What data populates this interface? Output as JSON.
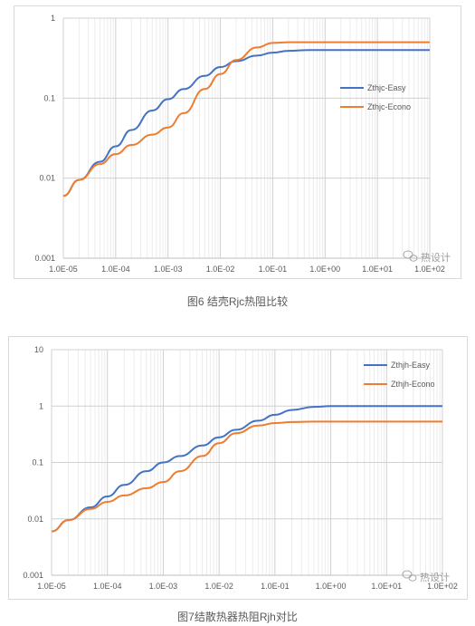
{
  "chart_data": [
    {
      "type": "line",
      "title": "",
      "xlabel": "",
      "ylabel": "",
      "x_scale": "log",
      "y_scale": "log",
      "xlim": [
        1e-05,
        100
      ],
      "ylim": [
        0.001,
        1
      ],
      "grid": true,
      "legend_position": "right",
      "x_tick_labels": [
        "1.0E-05",
        "1.0E-04",
        "1.0E-03",
        "1.0E-02",
        "1.0E-01",
        "1.0E+00",
        "1.0E+01",
        "1.0E+02"
      ],
      "y_tick_labels": [
        "1",
        "0.1",
        "0.01",
        "0.001"
      ],
      "series": [
        {
          "name": "Zthjc-Easy",
          "color": "#4472C4",
          "x": [
            1e-05,
            2e-05,
            5e-05,
            0.0001,
            0.0002,
            0.0005,
            0.001,
            0.002,
            0.005,
            0.01,
            0.02,
            0.05,
            0.1,
            0.2,
            0.5,
            1,
            10,
            100
          ],
          "y": [
            0.006,
            0.0095,
            0.016,
            0.025,
            0.04,
            0.07,
            0.097,
            0.13,
            0.19,
            0.245,
            0.29,
            0.34,
            0.37,
            0.39,
            0.4,
            0.4,
            0.4,
            0.4
          ]
        },
        {
          "name": "Zthjc-Econo",
          "color": "#ED7D31",
          "x": [
            1e-05,
            2e-05,
            5e-05,
            0.0001,
            0.0002,
            0.0005,
            0.001,
            0.002,
            0.005,
            0.01,
            0.02,
            0.05,
            0.1,
            0.2,
            0.5,
            1,
            10,
            100
          ],
          "y": [
            0.006,
            0.0095,
            0.015,
            0.02,
            0.026,
            0.035,
            0.043,
            0.065,
            0.13,
            0.2,
            0.3,
            0.43,
            0.49,
            0.5,
            0.5,
            0.5,
            0.5,
            0.5
          ]
        }
      ]
    },
    {
      "type": "line",
      "title": "",
      "xlabel": "",
      "ylabel": "",
      "x_scale": "log",
      "y_scale": "log",
      "xlim": [
        1e-05,
        100
      ],
      "ylim": [
        0.001,
        10
      ],
      "grid": true,
      "legend_position": "top-right",
      "x_tick_labels": [
        "1.0E-05",
        "1.0E-04",
        "1.0E-03",
        "1.0E-02",
        "1.0E-01",
        "1.0E+00",
        "1.0E+01",
        "1.0E+02"
      ],
      "y_tick_labels": [
        "10",
        "1",
        "0.1",
        "0.01",
        "0.001"
      ],
      "series": [
        {
          "name": "Zthjh-Easy",
          "color": "#4472C4",
          "x": [
            1e-05,
            2e-05,
            5e-05,
            0.0001,
            0.0002,
            0.0005,
            0.001,
            0.002,
            0.005,
            0.01,
            0.02,
            0.05,
            0.1,
            0.2,
            0.5,
            1,
            10,
            100
          ],
          "y": [
            0.006,
            0.0095,
            0.016,
            0.025,
            0.04,
            0.07,
            0.1,
            0.13,
            0.2,
            0.28,
            0.38,
            0.55,
            0.7,
            0.85,
            0.97,
            1.0,
            1.0,
            1.0
          ]
        },
        {
          "name": "Zthjh-Econo",
          "color": "#ED7D31",
          "x": [
            1e-05,
            2e-05,
            5e-05,
            0.0001,
            0.0002,
            0.0005,
            0.001,
            0.002,
            0.005,
            0.01,
            0.02,
            0.05,
            0.1,
            0.2,
            0.5,
            1,
            10,
            100
          ],
          "y": [
            0.006,
            0.0095,
            0.015,
            0.02,
            0.026,
            0.035,
            0.045,
            0.07,
            0.13,
            0.22,
            0.33,
            0.45,
            0.5,
            0.52,
            0.53,
            0.53,
            0.53,
            0.53
          ]
        }
      ]
    }
  ],
  "captions": {
    "figure6": "图6 结壳Rjc热阻比较",
    "figure7": "图7结散热器热阻Rjh对比"
  },
  "watermark": {
    "text": "热设计"
  }
}
